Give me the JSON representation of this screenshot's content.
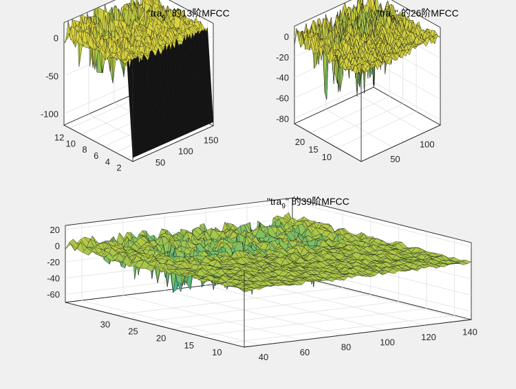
{
  "chart_data": [
    {
      "type": "surface",
      "title": {
        "pre": "\"tra",
        "sub": "9",
        "post": "\" 的13阶MFCC"
      },
      "x": {
        "ticks": [
          "50",
          "100",
          "150"
        ],
        "range": [
          1,
          160
        ]
      },
      "y": {
        "ticks": [
          "2",
          "4",
          "6",
          "8",
          "10",
          "12"
        ],
        "range": [
          1,
          13
        ]
      },
      "z": {
        "ticks": [
          "0",
          "-50",
          "-100"
        ],
        "range": [
          -115,
          20
        ]
      },
      "surface": {
        "rows": 13,
        "cols": 60,
        "base": 8,
        "amp": 14,
        "first_row": -110,
        "dip": -60
      }
    },
    {
      "type": "surface",
      "title": {
        "pre": "\"tra",
        "sub": "9",
        "post": "\" 的26阶MFCC"
      },
      "x": {
        "ticks": [
          "50",
          "100"
        ],
        "range": [
          1,
          125
        ]
      },
      "y": {
        "ticks": [
          "10",
          "15",
          "20"
        ],
        "range": [
          1,
          26
        ]
      },
      "z": {
        "ticks": [
          "0",
          "-20",
          "-40",
          "-60",
          "-80"
        ],
        "range": [
          -85,
          10
        ]
      },
      "surface": {
        "rows": 26,
        "cols": 45,
        "base": 0,
        "amp": 9,
        "dip": -60
      }
    },
    {
      "type": "surface",
      "title": {
        "pre": "\"tra",
        "sub": "9",
        "post": "\" 的39阶MFCC"
      },
      "x": {
        "ticks": [
          "40",
          "60",
          "80",
          "100",
          "120",
          "140"
        ],
        "range": [
          32,
          142
        ]
      },
      "y": {
        "ticks": [
          "10",
          "15",
          "20",
          "25",
          "30"
        ],
        "range": [
          7,
          39
        ]
      },
      "z": {
        "ticks": [
          "20",
          "0",
          "-20",
          "-40",
          "-60"
        ],
        "range": [
          -70,
          25
        ]
      },
      "surface": {
        "rows": 32,
        "cols": 60,
        "base": 0,
        "amp": 6,
        "dip": -55
      }
    }
  ]
}
